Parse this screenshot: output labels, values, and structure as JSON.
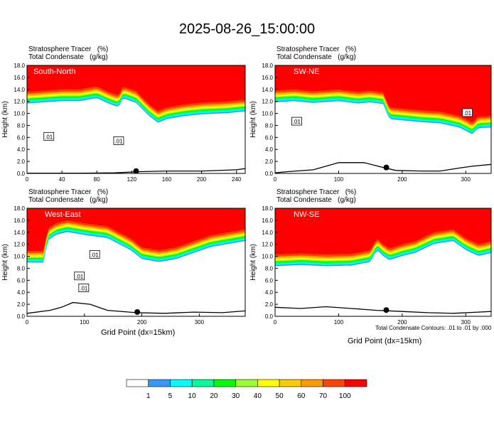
{
  "title": "2025-08-26_15:00:00",
  "header_lines": [
    "Stratosphere Tracer   (%)",
    "Total Condensate   (g/kg)"
  ],
  "x_axis_title": "Grid Point (dx=15km)",
  "contour_note": "Total Condensate Contours: .01 to .01 by .000",
  "colors": {
    "fill_levels": [
      "#ffffff",
      "#3399ff",
      "#00ffff",
      "#00ff99",
      "#00ff00",
      "#99ff33",
      "#ffff00",
      "#ffcc00",
      "#ff9900",
      "#ff4400",
      "#ff0000"
    ],
    "cloud_contour": "#000000",
    "terrain": "#000000"
  },
  "colorbar": {
    "labels": [
      "1",
      "5",
      "10",
      "20",
      "30",
      "40",
      "50",
      "60",
      "70",
      "100"
    ]
  },
  "chart_data": [
    {
      "type": "heatmap",
      "panel": "South-North",
      "xlabel": "",
      "ylabel": "Height (km)",
      "xlim": [
        0,
        250
      ],
      "ylim": [
        0,
        18
      ],
      "xticks": [
        "0",
        "40",
        "80",
        "120",
        "160",
        "200",
        "240"
      ],
      "yticks": [
        "0.0",
        "2.0",
        "4.0",
        "6.0",
        "8.0",
        "10.0",
        "12.0",
        "14.0",
        "16.0",
        "18.0"
      ],
      "contour_labels": [
        ".01",
        ".01"
      ],
      "tropopause_km": [
        [
          0,
          13.6
        ],
        [
          20,
          13.8
        ],
        [
          40,
          14.0
        ],
        [
          60,
          14.0
        ],
        [
          80,
          14.5
        ],
        [
          95,
          13.5
        ],
        [
          105,
          13.0
        ],
        [
          110,
          14.5
        ],
        [
          125,
          13.7
        ],
        [
          140,
          11.5
        ],
        [
          150,
          10.4
        ],
        [
          160,
          11.0
        ],
        [
          180,
          11.5
        ],
        [
          200,
          11.8
        ],
        [
          230,
          12.0
        ],
        [
          250,
          12.3
        ]
      ],
      "terrain_km": [
        [
          0,
          0.05
        ],
        [
          60,
          0.05
        ],
        [
          100,
          0.1
        ],
        [
          130,
          0.3
        ],
        [
          160,
          0.4
        ],
        [
          200,
          0.4
        ],
        [
          240,
          0.6
        ],
        [
          250,
          0.8
        ]
      ],
      "marker_x": 125
    },
    {
      "type": "heatmap",
      "panel": "SW-NE",
      "xlabel": "",
      "ylabel": "Height (km)",
      "xlim": [
        0,
        340
      ],
      "ylim": [
        0,
        18
      ],
      "xticks": [
        "0",
        "100",
        "200",
        "300"
      ],
      "yticks": [
        "0.0",
        "2.0",
        "4.0",
        "6.0",
        "8.0",
        "10.0",
        "12.0",
        "14.0",
        "16.0",
        "18.0"
      ],
      "contour_labels": [
        ".01",
        ".01"
      ],
      "tropopause_km": [
        [
          0,
          13.8
        ],
        [
          30,
          14.0
        ],
        [
          60,
          13.7
        ],
        [
          100,
          14.0
        ],
        [
          130,
          13.6
        ],
        [
          150,
          13.8
        ],
        [
          170,
          13.5
        ],
        [
          180,
          11.0
        ],
        [
          200,
          10.8
        ],
        [
          230,
          10.5
        ],
        [
          260,
          10.3
        ],
        [
          290,
          9.6
        ],
        [
          310,
          8.5
        ],
        [
          320,
          9.5
        ],
        [
          340,
          9.6
        ]
      ],
      "terrain_km": [
        [
          0,
          0.1
        ],
        [
          20,
          0.3
        ],
        [
          60,
          0.6
        ],
        [
          80,
          1.2
        ],
        [
          100,
          1.8
        ],
        [
          140,
          1.8
        ],
        [
          170,
          1.0
        ],
        [
          190,
          0.5
        ],
        [
          230,
          0.4
        ],
        [
          260,
          0.4
        ],
        [
          290,
          0.9
        ],
        [
          310,
          1.2
        ],
        [
          340,
          1.5
        ]
      ],
      "marker_x": 175
    },
    {
      "type": "heatmap",
      "panel": "West-East",
      "xlabel": "Grid Point (dx=15km)",
      "ylabel": "Height (km)",
      "xlim": [
        0,
        380
      ],
      "ylim": [
        0,
        18
      ],
      "xticks": [
        "0",
        "100",
        "200",
        "300"
      ],
      "yticks": [
        "0.0",
        "2.0",
        "4.0",
        "6.0",
        "8.0",
        "10.0",
        "12.0",
        "14.0",
        "16.0",
        "18.0"
      ],
      "contour_labels": [
        ".01",
        ".01",
        ".01"
      ],
      "tropopause_km": [
        [
          0,
          10.9
        ],
        [
          30,
          10.9
        ],
        [
          35,
          14.5
        ],
        [
          50,
          15.5
        ],
        [
          70,
          16.0
        ],
        [
          100,
          15.5
        ],
        [
          140,
          15.0
        ],
        [
          180,
          13.0
        ],
        [
          200,
          11.5
        ],
        [
          230,
          11.0
        ],
        [
          260,
          11.5
        ],
        [
          290,
          12.5
        ],
        [
          320,
          13.5
        ],
        [
          350,
          14.0
        ],
        [
          380,
          14.5
        ]
      ],
      "terrain_km": [
        [
          0,
          0.5
        ],
        [
          40,
          1.0
        ],
        [
          60,
          1.5
        ],
        [
          80,
          2.3
        ],
        [
          110,
          2.0
        ],
        [
          140,
          1.0
        ],
        [
          190,
          0.6
        ],
        [
          240,
          0.5
        ],
        [
          290,
          0.7
        ],
        [
          340,
          0.6
        ],
        [
          380,
          0.9
        ]
      ],
      "marker_x": 192
    },
    {
      "type": "heatmap",
      "panel": "NW-SE",
      "xlabel": "Grid Point (dx=15km)",
      "ylabel": "Height (km)",
      "xlim": [
        0,
        340
      ],
      "ylim": [
        0,
        18
      ],
      "xticks": [
        "0",
        "100",
        "200",
        "300"
      ],
      "yticks": [
        "0.0",
        "2.0",
        "4.0",
        "6.0",
        "8.0",
        "10.0",
        "12.0",
        "14.0",
        "16.0",
        "18.0"
      ],
      "contour_labels": [],
      "tropopause_km": [
        [
          0,
          10.3
        ],
        [
          40,
          10.5
        ],
        [
          80,
          10.3
        ],
        [
          120,
          10.4
        ],
        [
          150,
          11.0
        ],
        [
          160,
          13.0
        ],
        [
          170,
          12.0
        ],
        [
          180,
          11.3
        ],
        [
          200,
          12.0
        ],
        [
          220,
          12.5
        ],
        [
          250,
          14.0
        ],
        [
          280,
          14.5
        ],
        [
          300,
          13.0
        ],
        [
          320,
          12.0
        ],
        [
          340,
          12.5
        ]
      ],
      "terrain_km": [
        [
          0,
          1.5
        ],
        [
          40,
          1.3
        ],
        [
          80,
          1.6
        ],
        [
          120,
          1.3
        ],
        [
          160,
          1.0
        ],
        [
          200,
          0.8
        ],
        [
          240,
          0.6
        ],
        [
          280,
          0.5
        ],
        [
          320,
          0.7
        ],
        [
          340,
          0.8
        ]
      ],
      "marker_x": 175
    }
  ]
}
